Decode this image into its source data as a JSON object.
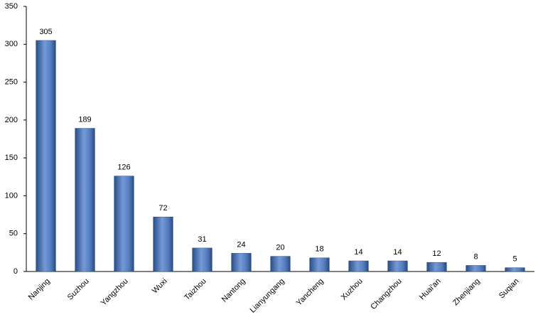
{
  "chart_data": {
    "type": "bar",
    "categories": [
      "Nanjing",
      "Suzhou",
      "Yangzhou",
      "Wuxi",
      "Taizhou",
      "Nantong",
      "Lianyungang",
      "Yancheng",
      "Xuzhou",
      "Changzhou",
      "Huai'an",
      "Zhenjiang",
      "Suqian"
    ],
    "values": [
      305,
      189,
      126,
      72,
      31,
      24,
      20,
      18,
      14,
      14,
      12,
      8,
      5
    ],
    "color": "#3a6fc4",
    "ylim": [
      0,
      350
    ],
    "yticks": [
      0,
      50,
      100,
      150,
      200,
      250,
      300,
      350
    ],
    "grid": false
  }
}
